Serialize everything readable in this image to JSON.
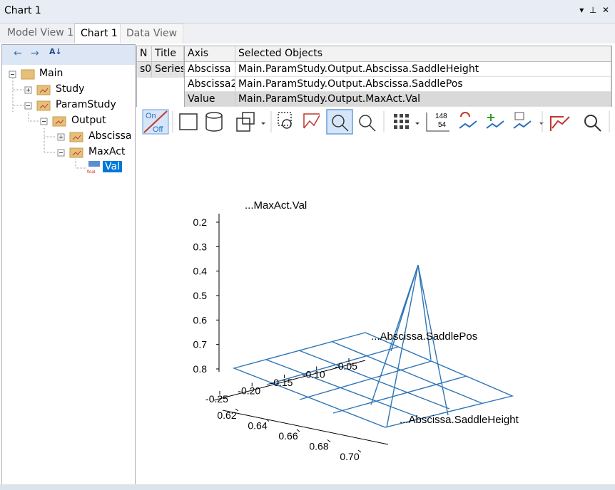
{
  "window": {
    "title": "Chart 1",
    "tabs": [
      "Model View 1",
      "Chart 1",
      "Data View"
    ]
  },
  "tree": {
    "nodes": [
      "Main",
      "Study",
      "ParamStudy",
      "Output",
      "Abscissa",
      "MaxAct",
      "Val"
    ],
    "icon_text": "float"
  },
  "series_table": {
    "header": [
      "N",
      "Title"
    ],
    "rows": [
      [
        "s0",
        "Series"
      ]
    ]
  },
  "axis_table": {
    "header": [
      "Axis",
      "Selected Objects"
    ],
    "rows": [
      [
        "Abscissa",
        "Main.ParamStudy.Output.Abscissa.SaddleHeight"
      ],
      [
        "Abscissa2",
        "Main.ParamStudy.Output.Abscissa.SaddlePos"
      ],
      [
        "Value",
        "Main.ParamStudy.Output.MaxAct.Val"
      ]
    ]
  },
  "toolbar": {
    "toggle_on": "On",
    "toggle_off": "Off",
    "labels_icon": [
      "148",
      "54"
    ]
  },
  "plot": {
    "z_label": "...MaxAct.Val",
    "y_label": "...Abscissa.SaddlePos",
    "x_label": "...Abscissa.SaddleHeight",
    "zticks": [
      0.8,
      0.7,
      0.6,
      0.5,
      0.4,
      0.3,
      0.2
    ],
    "yticks": [
      -0.25,
      {
        "value": -0.2,
        "label": "-0.20"
      },
      -0.15,
      {
        "value": -0.1,
        "label": "-0.10"
      },
      -0.05
    ],
    "xticks": [
      0.62,
      0.64,
      0.66,
      0.68,
      {
        "value": 0.7,
        "label": "0.70"
      }
    ]
  }
}
